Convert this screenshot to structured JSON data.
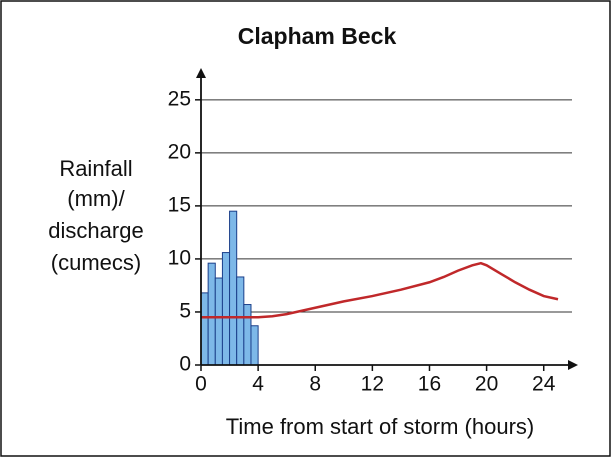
{
  "chart_data": {
    "type": "hydrograph",
    "title": "Clapham Beck",
    "ylabel": [
      "Rainfall",
      "(mm)/",
      "discharge",
      "(cumecs)"
    ],
    "xlabel": "Time from start of storm (hours)",
    "xlim": [
      0,
      26.4
    ],
    "ylim": [
      0,
      28
    ],
    "xticks": [
      0,
      4,
      8,
      12,
      16,
      20,
      24
    ],
    "yticks": [
      0,
      5,
      10,
      15,
      20,
      25
    ],
    "grid": true,
    "bins": [
      0,
      0.5,
      1,
      1.5,
      2,
      2.5,
      3,
      3.5,
      4
    ],
    "rainfall": {
      "color": "#7db8e8",
      "values": [
        6.8,
        9.6,
        8.2,
        10.6,
        14.5,
        8.3,
        5.7,
        3.7
      ]
    },
    "discharge": {
      "color": "#c0282a",
      "x": [
        0,
        2,
        4,
        5,
        6,
        8,
        10,
        12,
        14,
        16,
        17,
        18,
        19,
        19.6,
        20,
        21,
        22,
        23,
        24,
        25
      ],
      "values": [
        4.5,
        4.5,
        4.5,
        4.6,
        4.8,
        5.4,
        6.0,
        6.5,
        7.1,
        7.8,
        8.3,
        8.9,
        9.4,
        9.6,
        9.4,
        8.6,
        7.8,
        7.1,
        6.5,
        6.2
      ]
    }
  }
}
